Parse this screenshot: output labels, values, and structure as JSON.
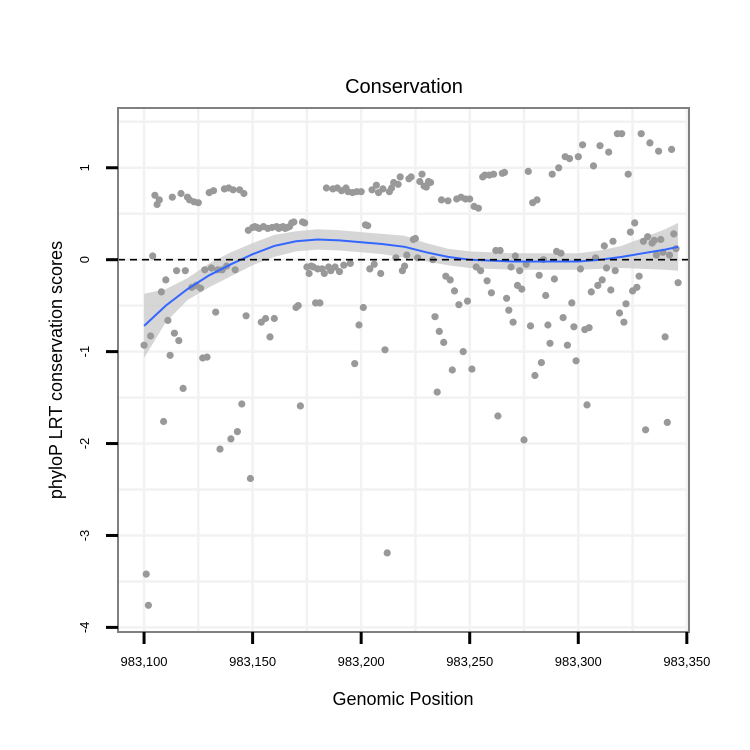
{
  "chart_data": {
    "type": "scatter",
    "title": "Conservation",
    "xlabel": "Genomic Position",
    "ylabel": "phyloP LRT conservation scores",
    "xlim": [
      983088,
      983351
    ],
    "ylim": [
      -4.05,
      1.65
    ],
    "x_ticks": [
      983100,
      983150,
      983200,
      983250,
      983300,
      983350
    ],
    "x_tick_labels": [
      "983,100",
      "983,150",
      "983,200",
      "983,250",
      "983,300",
      "983,350"
    ],
    "y_ticks": [
      -4,
      -3,
      -2,
      -1,
      0,
      1
    ],
    "y_tick_labels": [
      "-4",
      "-3",
      "-2",
      "-1",
      "0",
      "1"
    ],
    "reference_line": {
      "y": 0,
      "style": "dashed"
    },
    "colors": {
      "points": "#999999",
      "smooth": "#3366ff",
      "ribbon": "#cccccc",
      "panel_border": "#808080",
      "grid": "#f2f2f2"
    },
    "points": [
      [
        983100,
        -0.93
      ],
      [
        983101,
        -3.42
      ],
      [
        983102,
        -3.76
      ],
      [
        983103,
        -0.83
      ],
      [
        983104,
        0.04
      ],
      [
        983105,
        0.7
      ],
      [
        983106,
        0.6
      ],
      [
        983107,
        0.65
      ],
      [
        983108,
        -0.35
      ],
      [
        983109,
        -1.76
      ],
      [
        983110,
        -0.22
      ],
      [
        983111,
        -0.66
      ],
      [
        983112,
        -1.04
      ],
      [
        983113,
        0.68
      ],
      [
        983114,
        -0.8
      ],
      [
        983115,
        -0.12
      ],
      [
        983116,
        -0.88
      ],
      [
        983117,
        0.72
      ],
      [
        983118,
        -1.4
      ],
      [
        983119,
        -0.12
      ],
      [
        983120,
        0.68
      ],
      [
        983121,
        0.65
      ],
      [
        983122,
        -0.3
      ],
      [
        983123,
        0.63
      ],
      [
        983124,
        -0.28
      ],
      [
        983125,
        0.62
      ],
      [
        983126,
        -0.31
      ],
      [
        983127,
        -1.07
      ],
      [
        983128,
        -0.11
      ],
      [
        983129,
        -1.06
      ],
      [
        983130,
        0.73
      ],
      [
        983131,
        -0.09
      ],
      [
        983132,
        0.75
      ],
      [
        983133,
        -0.57
      ],
      [
        983134,
        -0.11
      ],
      [
        983135,
        -2.06
      ],
      [
        983136,
        -0.11
      ],
      [
        983137,
        0.77
      ],
      [
        983138,
        -0.07
      ],
      [
        983139,
        0.78
      ],
      [
        983140,
        -1.95
      ],
      [
        983141,
        0.76
      ],
      [
        983142,
        -0.11
      ],
      [
        983143,
        -1.87
      ],
      [
        983144,
        0.76
      ],
      [
        983145,
        -1.57
      ],
      [
        983146,
        0.72
      ],
      [
        983147,
        -0.61
      ],
      [
        983148,
        0.32
      ],
      [
        983149,
        -2.38
      ],
      [
        983150,
        0.35
      ],
      [
        983151,
        0.36
      ],
      [
        983152,
        0.35
      ],
      [
        983153,
        0.34
      ],
      [
        983154,
        -0.68
      ],
      [
        983155,
        0.36
      ],
      [
        983156,
        -0.64
      ],
      [
        983157,
        0.34
      ],
      [
        983158,
        -0.84
      ],
      [
        983159,
        0.35
      ],
      [
        983160,
        -0.64
      ],
      [
        983161,
        0.36
      ],
      [
        983162,
        0.34
      ],
      [
        983163,
        0.35
      ],
      [
        983164,
        0.36
      ],
      [
        983165,
        0.34
      ],
      [
        983166,
        0.35
      ],
      [
        983167,
        0.36
      ],
      [
        983168,
        0.4
      ],
      [
        983169,
        0.41
      ],
      [
        983170,
        -0.52
      ],
      [
        983171,
        -0.5
      ],
      [
        983172,
        -1.59
      ],
      [
        983173,
        0.41
      ],
      [
        983174,
        0.4
      ],
      [
        983175,
        -0.08
      ],
      [
        983176,
        -0.15
      ],
      [
        983177,
        -0.07
      ],
      [
        983178,
        -0.08
      ],
      [
        983179,
        -0.47
      ],
      [
        983180,
        -0.1
      ],
      [
        983181,
        -0.47
      ],
      [
        983182,
        -0.1
      ],
      [
        983183,
        -0.15
      ],
      [
        983184,
        0.78
      ],
      [
        983185,
        -0.08
      ],
      [
        983186,
        -0.12
      ],
      [
        983187,
        0.77
      ],
      [
        983188,
        -0.08
      ],
      [
        983189,
        0.78
      ],
      [
        983190,
        -0.13
      ],
      [
        983191,
        0.75
      ],
      [
        983192,
        -0.06
      ],
      [
        983193,
        0.78
      ],
      [
        983194,
        0.74
      ],
      [
        983195,
        -0.04
      ],
      [
        983196,
        0.73
      ],
      [
        983197,
        -1.13
      ],
      [
        983198,
        0.74
      ],
      [
        983199,
        -0.71
      ],
      [
        983200,
        0.74
      ],
      [
        983201,
        -0.52
      ],
      [
        983202,
        0.38
      ],
      [
        983203,
        0.37
      ],
      [
        983204,
        -0.1
      ],
      [
        983205,
        0.76
      ],
      [
        983206,
        -0.05
      ],
      [
        983207,
        0.81
      ],
      [
        983208,
        0.73
      ],
      [
        983209,
        -0.15
      ],
      [
        983210,
        0.77
      ],
      [
        983211,
        -0.98
      ],
      [
        983212,
        -3.19
      ],
      [
        983213,
        0.74
      ],
      [
        983214,
        0.78
      ],
      [
        983215,
        0.84
      ],
      [
        983216,
        0.02
      ],
      [
        983217,
        0.82
      ],
      [
        983218,
        0.9
      ],
      [
        983219,
        -0.12
      ],
      [
        983220,
        -0.07
      ],
      [
        983221,
        0.05
      ],
      [
        983222,
        0.88
      ],
      [
        983223,
        0.9
      ],
      [
        983224,
        0.22
      ],
      [
        983225,
        0.23
      ],
      [
        983226,
        0.02
      ],
      [
        983227,
        0.85
      ],
      [
        983228,
        0.93
      ],
      [
        983229,
        0.8
      ],
      [
        983230,
        0.79
      ],
      [
        983231,
        0.85
      ],
      [
        983232,
        0.84
      ],
      [
        983233,
        0.0
      ],
      [
        983234,
        -0.62
      ],
      [
        983235,
        -1.44
      ],
      [
        983236,
        -0.78
      ],
      [
        983237,
        0.65
      ],
      [
        983238,
        -0.9
      ],
      [
        983239,
        -0.18
      ],
      [
        983240,
        0.64
      ],
      [
        983241,
        -0.22
      ],
      [
        983242,
        -1.2
      ],
      [
        983243,
        -0.34
      ],
      [
        983244,
        0.66
      ],
      [
        983245,
        -0.49
      ],
      [
        983246,
        0.68
      ],
      [
        983247,
        -1.0
      ],
      [
        983248,
        0.66
      ],
      [
        983249,
        -0.45
      ],
      [
        983250,
        0.66
      ],
      [
        983251,
        -1.19
      ],
      [
        983252,
        0.58
      ],
      [
        983253,
        -0.08
      ],
      [
        983254,
        0.56
      ],
      [
        983255,
        -0.12
      ],
      [
        983256,
        0.9
      ],
      [
        983257,
        0.92
      ],
      [
        983258,
        -0.23
      ],
      [
        983259,
        0.92
      ],
      [
        983260,
        -0.36
      ],
      [
        983261,
        0.93
      ],
      [
        983262,
        0.1
      ],
      [
        983263,
        -1.7
      ],
      [
        983264,
        0.1
      ],
      [
        983265,
        0.94
      ],
      [
        983266,
        0.95
      ],
      [
        983267,
        -0.42
      ],
      [
        983268,
        -0.55
      ],
      [
        983269,
        -0.08
      ],
      [
        983270,
        -0.68
      ],
      [
        983271,
        0.04
      ],
      [
        983272,
        -0.28
      ],
      [
        983273,
        -0.12
      ],
      [
        983274,
        -0.32
      ],
      [
        983275,
        -1.96
      ],
      [
        983276,
        -0.05
      ],
      [
        983277,
        0.96
      ],
      [
        983278,
        -0.72
      ],
      [
        983279,
        0.62
      ],
      [
        983280,
        -1.26
      ],
      [
        983281,
        0.65
      ],
      [
        983282,
        -0.17
      ],
      [
        983283,
        -1.12
      ],
      [
        983284,
        0.0
      ],
      [
        983285,
        -0.39
      ],
      [
        983286,
        -0.71
      ],
      [
        983287,
        -0.91
      ],
      [
        983288,
        0.93
      ],
      [
        983289,
        -0.21
      ],
      [
        983290,
        0.09
      ],
      [
        983291,
        1.0
      ],
      [
        983292,
        0.07
      ],
      [
        983293,
        -0.63
      ],
      [
        983294,
        1.12
      ],
      [
        983295,
        -0.93
      ],
      [
        983296,
        1.1
      ],
      [
        983297,
        -0.47
      ],
      [
        983298,
        -0.73
      ],
      [
        983299,
        -1.1
      ],
      [
        983300,
        1.12
      ],
      [
        983301,
        -0.1
      ],
      [
        983302,
        1.25
      ],
      [
        983303,
        -0.76
      ],
      [
        983304,
        -1.58
      ],
      [
        983305,
        -0.74
      ],
      [
        983306,
        -0.35
      ],
      [
        983307,
        1.02
      ],
      [
        983308,
        0.02
      ],
      [
        983309,
        -0.28
      ],
      [
        983310,
        1.24
      ],
      [
        983311,
        -0.22
      ],
      [
        983312,
        0.15
      ],
      [
        983313,
        -0.09
      ],
      [
        983314,
        1.17
      ],
      [
        983315,
        -0.33
      ],
      [
        983316,
        0.2
      ],
      [
        983317,
        -0.12
      ],
      [
        983318,
        1.37
      ],
      [
        983319,
        -0.58
      ],
      [
        983320,
        1.37
      ],
      [
        983321,
        -0.68
      ],
      [
        983322,
        -0.48
      ],
      [
        983323,
        0.93
      ],
      [
        983324,
        0.3
      ],
      [
        983325,
        -0.34
      ],
      [
        983326,
        0.4
      ],
      [
        983327,
        -0.3
      ],
      [
        983328,
        -0.18
      ],
      [
        983329,
        1.37
      ],
      [
        983330,
        0.2
      ],
      [
        983331,
        -1.85
      ],
      [
        983332,
        0.25
      ],
      [
        983333,
        1.27
      ],
      [
        983334,
        0.18
      ],
      [
        983335,
        0.21
      ],
      [
        983336,
        0.05
      ],
      [
        983337,
        1.18
      ],
      [
        983338,
        0.22
      ],
      [
        983339,
        0.08
      ],
      [
        983340,
        -0.84
      ],
      [
        983341,
        -1.77
      ],
      [
        983342,
        0.05
      ],
      [
        983343,
        1.2
      ],
      [
        983344,
        0.28
      ],
      [
        983345,
        0.12
      ],
      [
        983346,
        -0.25
      ]
    ],
    "smooth_line": [
      [
        983100,
        -0.72
      ],
      [
        983110,
        -0.5
      ],
      [
        983120,
        -0.32
      ],
      [
        983130,
        -0.17
      ],
      [
        983140,
        -0.05
      ],
      [
        983150,
        0.06
      ],
      [
        983160,
        0.15
      ],
      [
        983170,
        0.2
      ],
      [
        983180,
        0.22
      ],
      [
        983190,
        0.21
      ],
      [
        983200,
        0.19
      ],
      [
        983210,
        0.17
      ],
      [
        983220,
        0.14
      ],
      [
        983230,
        0.08
      ],
      [
        983240,
        0.03
      ],
      [
        983250,
        0.0
      ],
      [
        983260,
        -0.01
      ],
      [
        983270,
        -0.02
      ],
      [
        983280,
        -0.02
      ],
      [
        983290,
        -0.02
      ],
      [
        983300,
        -0.02
      ],
      [
        983310,
        0.0
      ],
      [
        983320,
        0.03
      ],
      [
        983330,
        0.07
      ],
      [
        983340,
        0.11
      ],
      [
        983346,
        0.14
      ]
    ],
    "ribbon_upper": [
      [
        983100,
        -0.37
      ],
      [
        983110,
        -0.32
      ],
      [
        983120,
        -0.2
      ],
      [
        983130,
        -0.04
      ],
      [
        983140,
        0.08
      ],
      [
        983150,
        0.18
      ],
      [
        983160,
        0.27
      ],
      [
        983170,
        0.31
      ],
      [
        983180,
        0.33
      ],
      [
        983190,
        0.32
      ],
      [
        983200,
        0.3
      ],
      [
        983210,
        0.28
      ],
      [
        983220,
        0.26
      ],
      [
        983230,
        0.18
      ],
      [
        983240,
        0.12
      ],
      [
        983250,
        0.09
      ],
      [
        983260,
        0.08
      ],
      [
        983270,
        0.07
      ],
      [
        983280,
        0.07
      ],
      [
        983290,
        0.07
      ],
      [
        983300,
        0.07
      ],
      [
        983310,
        0.1
      ],
      [
        983320,
        0.15
      ],
      [
        983330,
        0.24
      ],
      [
        983340,
        0.33
      ],
      [
        983346,
        0.4
      ]
    ],
    "ribbon_lower": [
      [
        983100,
        -1.07
      ],
      [
        983110,
        -0.68
      ],
      [
        983120,
        -0.44
      ],
      [
        983130,
        -0.3
      ],
      [
        983140,
        -0.18
      ],
      [
        983150,
        -0.06
      ],
      [
        983160,
        0.03
      ],
      [
        983170,
        0.09
      ],
      [
        983180,
        0.11
      ],
      [
        983190,
        0.1
      ],
      [
        983200,
        0.08
      ],
      [
        983210,
        0.06
      ],
      [
        983220,
        0.02
      ],
      [
        983230,
        -0.02
      ],
      [
        983240,
        -0.06
      ],
      [
        983250,
        -0.09
      ],
      [
        983260,
        -0.1
      ],
      [
        983270,
        -0.11
      ],
      [
        983280,
        -0.11
      ],
      [
        983290,
        -0.11
      ],
      [
        983300,
        -0.11
      ],
      [
        983310,
        -0.1
      ],
      [
        983320,
        -0.09
      ],
      [
        983330,
        -0.1
      ],
      [
        983340,
        -0.11
      ],
      [
        983346,
        -0.12
      ]
    ]
  }
}
